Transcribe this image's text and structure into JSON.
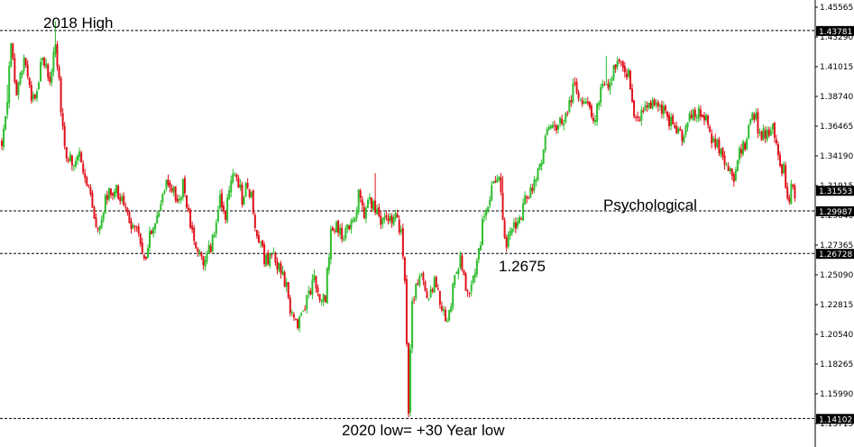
{
  "chart_data": {
    "type": "candlestick",
    "title": "",
    "xlabel": "",
    "ylabel": "",
    "ylim": [
      1.1378,
      1.45565
    ],
    "grid": false,
    "colors": {
      "up": "#2ebd2e",
      "down": "#e0101a",
      "level_line": "#000000",
      "label_box": "#000000"
    },
    "y_ticks": [
      "1.45565",
      "1.43290",
      "1.41015",
      "1.38740",
      "1.36465",
      "1.34190",
      "1.31915",
      "1.29640",
      "1.27365",
      "1.25090",
      "1.22815",
      "1.20540",
      "1.18265",
      "1.15990",
      "1.13715"
    ],
    "levels": [
      {
        "value": 1.43781,
        "label": "1.43781",
        "annotation": "2018 High"
      },
      {
        "value": 1.29987,
        "label": "1.29987",
        "annotation": "Psychological"
      },
      {
        "value": 1.26728,
        "label": "1.26728",
        "annotation": ""
      },
      {
        "value": 1.14102,
        "label": "1.14102",
        "annotation": "2020 low= +30 Year low"
      }
    ],
    "current_price": {
      "value": 1.31553,
      "label": "1.31553"
    },
    "annotations": [
      {
        "text": "1.2675",
        "value": 1.2675
      }
    ],
    "path": [
      [
        0,
        1.353
      ],
      [
        3,
        1.385
      ],
      [
        5,
        1.425
      ],
      [
        8,
        1.392
      ],
      [
        12,
        1.418
      ],
      [
        17,
        1.383
      ],
      [
        22,
        1.417
      ],
      [
        26,
        1.397
      ],
      [
        29,
        1.43
      ],
      [
        32,
        1.38
      ],
      [
        34,
        1.35
      ],
      [
        36,
        1.342
      ],
      [
        39,
        1.337
      ],
      [
        42,
        1.345
      ],
      [
        45,
        1.33
      ],
      [
        48,
        1.313
      ],
      [
        50,
        1.298
      ],
      [
        52,
        1.285
      ],
      [
        55,
        1.303
      ],
      [
        58,
        1.312
      ],
      [
        61,
        1.317
      ],
      [
        64,
        1.31
      ],
      [
        67,
        1.297
      ],
      [
        70,
        1.29
      ],
      [
        73,
        1.285
      ],
      [
        75,
        1.273
      ],
      [
        77,
        1.263
      ],
      [
        80,
        1.279
      ],
      [
        83,
        1.287
      ],
      [
        86,
        1.31
      ],
      [
        89,
        1.322
      ],
      [
        92,
        1.32
      ],
      [
        95,
        1.31
      ],
      [
        98,
        1.318
      ],
      [
        101,
        1.303
      ],
      [
        103,
        1.282
      ],
      [
        106,
        1.273
      ],
      [
        109,
        1.257
      ],
      [
        112,
        1.268
      ],
      [
        115,
        1.285
      ],
      [
        118,
        1.312
      ],
      [
        121,
        1.297
      ],
      [
        124,
        1.325
      ],
      [
        127,
        1.322
      ],
      [
        130,
        1.31
      ],
      [
        133,
        1.322
      ],
      [
        136,
        1.302
      ],
      [
        139,
        1.273
      ],
      [
        142,
        1.265
      ],
      [
        145,
        1.263
      ],
      [
        148,
        1.262
      ],
      [
        151,
        1.255
      ],
      [
        154,
        1.24
      ],
      [
        157,
        1.22
      ],
      [
        160,
        1.209
      ],
      [
        163,
        1.225
      ],
      [
        166,
        1.238
      ],
      [
        169,
        1.25
      ],
      [
        172,
        1.235
      ],
      [
        175,
        1.236
      ],
      [
        178,
        1.282
      ],
      [
        181,
        1.292
      ],
      [
        184,
        1.282
      ],
      [
        187,
        1.287
      ],
      [
        190,
        1.29
      ],
      [
        193,
        1.312
      ],
      [
        196,
        1.3
      ],
      [
        199,
        1.307
      ],
      [
        202,
        1.3
      ],
      [
        205,
        1.295
      ],
      [
        208,
        1.291
      ],
      [
        211,
        1.296
      ],
      [
        214,
        1.292
      ],
      [
        216,
        1.28
      ],
      [
        218,
        1.245
      ],
      [
        220,
        1.15
      ],
      [
        222,
        1.232
      ],
      [
        225,
        1.248
      ],
      [
        228,
        1.245
      ],
      [
        231,
        1.236
      ],
      [
        234,
        1.245
      ],
      [
        237,
        1.233
      ],
      [
        240,
        1.216
      ],
      [
        242,
        1.218
      ],
      [
        245,
        1.255
      ],
      [
        248,
        1.264
      ],
      [
        251,
        1.24
      ],
      [
        254,
        1.238
      ],
      [
        257,
        1.258
      ],
      [
        260,
        1.288
      ],
      [
        263,
        1.306
      ],
      [
        266,
        1.325
      ],
      [
        269,
        1.331
      ],
      [
        271,
        1.288
      ],
      [
        273,
        1.273
      ],
      [
        275,
        1.287
      ],
      [
        277,
        1.287
      ],
      [
        280,
        1.289
      ],
      [
        283,
        1.31
      ],
      [
        285,
        1.313
      ],
      [
        288,
        1.323
      ],
      [
        291,
        1.336
      ],
      [
        294,
        1.355
      ],
      [
        297,
        1.368
      ],
      [
        300,
        1.36
      ],
      [
        303,
        1.37
      ],
      [
        306,
        1.375
      ],
      [
        309,
        1.395
      ],
      [
        312,
        1.388
      ],
      [
        315,
        1.38
      ],
      [
        318,
        1.376
      ],
      [
        321,
        1.372
      ],
      [
        324,
        1.39
      ],
      [
        327,
        1.395
      ],
      [
        330,
        1.403
      ],
      [
        333,
        1.415
      ],
      [
        336,
        1.414
      ],
      [
        339,
        1.402
      ],
      [
        342,
        1.378
      ],
      [
        345,
        1.372
      ],
      [
        348,
        1.384
      ],
      [
        351,
        1.38
      ],
      [
        354,
        1.384
      ],
      [
        357,
        1.378
      ],
      [
        360,
        1.369
      ],
      [
        363,
        1.372
      ],
      [
        366,
        1.358
      ],
      [
        369,
        1.36
      ],
      [
        372,
        1.373
      ],
      [
        375,
        1.372
      ],
      [
        378,
        1.378
      ],
      [
        381,
        1.37
      ],
      [
        384,
        1.357
      ],
      [
        387,
        1.353
      ],
      [
        390,
        1.34
      ],
      [
        393,
        1.33
      ],
      [
        396,
        1.324
      ],
      [
        399,
        1.345
      ],
      [
        402,
        1.348
      ],
      [
        405,
        1.37
      ],
      [
        408,
        1.369
      ],
      [
        411,
        1.356
      ],
      [
        414,
        1.36
      ],
      [
        417,
        1.362
      ],
      [
        420,
        1.342
      ],
      [
        423,
        1.33
      ],
      [
        425,
        1.304
      ],
      [
        427,
        1.316
      ],
      [
        429,
        1.315
      ]
    ]
  }
}
